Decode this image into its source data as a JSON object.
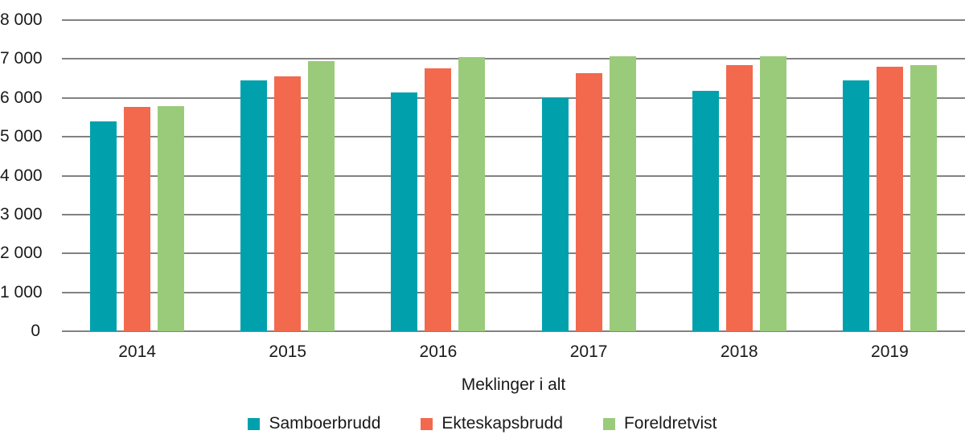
{
  "chart_data": {
    "type": "bar",
    "categories": [
      "2014",
      "2015",
      "2016",
      "2017",
      "2018",
      "2019"
    ],
    "series": [
      {
        "name": "Samboerbrudd",
        "color": "#00A1AD",
        "values": [
          5400,
          6450,
          6140,
          6000,
          6180,
          6440
        ]
      },
      {
        "name": "Ekteskapsbrudd",
        "color": "#F2694E",
        "values": [
          5760,
          6550,
          6770,
          6630,
          6840,
          6800
        ]
      },
      {
        "name": "Foreldretvist",
        "color": "#9ACB7B",
        "values": [
          5780,
          6940,
          7040,
          7080,
          7070,
          6850
        ]
      }
    ],
    "title": "",
    "xlabel": "Meklinger i alt",
    "ylabel": "",
    "ylim": [
      0,
      8000
    ],
    "ytick_step": 1000,
    "ytick_labels": [
      "0",
      "1 000",
      "2 000",
      "3 000",
      "4 000",
      "5 000",
      "6 000",
      "7 000",
      "8 000"
    ],
    "grid": true,
    "legend_position": "bottom"
  },
  "colors": {
    "grid": "#828282",
    "text": "#1a1a1a",
    "background": "#ffffff"
  }
}
